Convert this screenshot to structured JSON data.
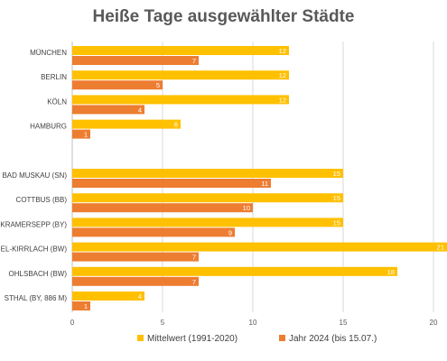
{
  "chart_data": {
    "type": "bar",
    "orientation": "horizontal",
    "title": "Heiße Tage ausgewählter Städte",
    "categories": [
      "MÜNCHEN",
      "BERLIN",
      "KÖLN",
      "HAMBURG",
      "",
      "BAD MUSKAU (SN)",
      "COTTBUS (BB)",
      "-KRAMERSEPP (BY)",
      "EL-KIRRLACH (BW)",
      "OHLSBACH (BW)",
      "STHAL (BY, 886 M)"
    ],
    "series": [
      {
        "name": "Mittelwert (1991-2020)",
        "color": "#FFC000",
        "values": [
          12,
          12,
          12,
          6,
          null,
          15,
          15,
          15,
          21,
          18,
          4
        ]
      },
      {
        "name": "Jahr 2024 (bis 15.07.)",
        "color": "#ED7D31",
        "values": [
          7,
          5,
          4,
          1,
          null,
          11,
          10,
          9,
          7,
          7,
          1
        ]
      }
    ],
    "xlim": [
      0,
      21
    ],
    "xticks": [
      0,
      5,
      10,
      15,
      20
    ],
    "grid": true,
    "legend": "bottom"
  }
}
